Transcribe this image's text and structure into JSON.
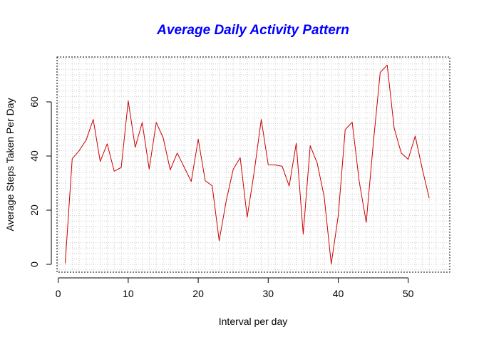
{
  "chart_data": {
    "type": "line",
    "title": "Average Daily Activity Pattern",
    "xlabel": "Interval per day",
    "ylabel": "Average Steps Taken Per Day",
    "xlim": [
      0,
      55
    ],
    "ylim": [
      -2,
      77
    ],
    "x_ticks": [
      0,
      10,
      20,
      30,
      40,
      50
    ],
    "y_ticks": [
      0,
      20,
      40,
      60
    ],
    "grid": true,
    "line_color": "#cc0000",
    "title_color": "#0000ff",
    "series": [
      {
        "x": [
          1,
          2,
          3,
          4,
          5,
          6,
          7,
          8,
          9,
          10,
          11,
          12,
          13,
          14,
          15,
          16,
          17,
          18,
          19,
          20,
          21,
          22,
          23,
          24,
          25,
          26,
          27,
          28,
          29,
          30,
          31,
          32,
          33,
          34,
          35,
          36,
          37,
          38,
          39,
          40,
          41,
          42,
          43,
          44,
          45,
          46,
          47,
          48,
          49,
          50,
          51,
          52,
          53
        ],
        "values": [
          0.4,
          39,
          42,
          46,
          53.5,
          38,
          44.5,
          34.4,
          35.8,
          60.4,
          43.2,
          52.4,
          35.2,
          52.4,
          46.7,
          34.9,
          41.1,
          35.9,
          30.6,
          46.2,
          30.9,
          29,
          8.7,
          23.5,
          35.1,
          39.4,
          17.4,
          34.1,
          53.5,
          36.8,
          36.7,
          36.2,
          28.9,
          44.7,
          11.2,
          43.8,
          37.4,
          25,
          0.1,
          17.9,
          49.8,
          52.5,
          30.7,
          15.5,
          44.4,
          70.9,
          73.6,
          50.3,
          41.1,
          38.8,
          47.4,
          35.4,
          24.5
        ]
      }
    ]
  }
}
